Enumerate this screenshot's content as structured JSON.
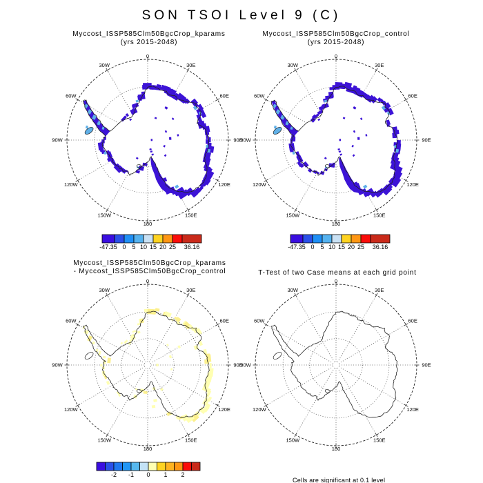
{
  "title": "SON TSOI Level 9 (C)",
  "map": {
    "lon_labels": [
      "0",
      "30E",
      "60E",
      "90E",
      "120E",
      "150E",
      "180",
      "150W",
      "120W",
      "90W",
      "60W",
      "30W"
    ]
  },
  "panels": [
    {
      "name": "kparams",
      "title_lines": [
        "Myccost_ISSP585Clm50BgcCrop_kparams",
        "(yrs 2015-2048)"
      ],
      "colorbar": {
        "labels": [
          "-47.35",
          "0",
          "5",
          "10",
          "15",
          "20",
          "25",
          "36.16"
        ],
        "colors": [
          "#3a0ee0",
          "#2a50e8",
          "#1f8ff5",
          "#55b2ef",
          "#c9e1f4",
          "#ffd321",
          "#ff9613",
          "#fb0d0a",
          "#ca2a1a"
        ]
      }
    },
    {
      "name": "control",
      "title_lines": [
        "Myccost_ISSP585Clm50BgcCrop_control",
        "(yrs 2015-2048)"
      ],
      "colorbar": {
        "labels": [
          "-47.35",
          "0",
          "5",
          "10",
          "15",
          "20",
          "25",
          "36.16"
        ],
        "colors": [
          "#3a0ee0",
          "#2a50e8",
          "#1f8ff5",
          "#55b2ef",
          "#c9e1f4",
          "#ffd321",
          "#ff9613",
          "#fb0d0a",
          "#ca2a1a"
        ]
      }
    },
    {
      "name": "difference",
      "title_lines": [
        "Myccost_ISSP585Clm50BgcCrop_kparams",
        "- Myccost_ISSP585Clm50BgcCrop_control"
      ],
      "colorbar": {
        "labels": [
          "-2",
          "-1",
          "0",
          "1",
          "2"
        ],
        "colors": [
          "#3a0ee0",
          "#2a50e8",
          "#1f78f0",
          "#2196f5",
          "#56b8ee",
          "#c3e2f5",
          "#ffffb2",
          "#ffd321",
          "#ffb321",
          "#ff9613",
          "#fb0d0a",
          "#ca2a1a"
        ]
      }
    },
    {
      "name": "ttest",
      "title_lines": [
        "T-Test of two Case means at each grid point"
      ],
      "footnote": "Cells are significant at 0.1 level"
    }
  ],
  "chart_data": [
    {
      "type": "heatmap",
      "projection": "south_polar_stereographic",
      "region": "Antarctica",
      "title": "Myccost_ISSP585Clm50BgcCrop_kparams (yrs 2015-2048)",
      "variable": "SON TSOI Level 9 (C)",
      "colorbar_labels": [
        "-47.35",
        "0",
        "5",
        "10",
        "15",
        "20",
        "25",
        "36.16"
      ],
      "min": -47.35,
      "max": 36.16
    },
    {
      "type": "heatmap",
      "projection": "south_polar_stereographic",
      "region": "Antarctica",
      "title": "Myccost_ISSP585Clm50BgcCrop_control (yrs 2015-2048)",
      "variable": "SON TSOI Level 9 (C)",
      "colorbar_labels": [
        "-47.35",
        "0",
        "5",
        "10",
        "15",
        "20",
        "25",
        "36.16"
      ],
      "min": -47.35,
      "max": 36.16
    },
    {
      "type": "heatmap",
      "projection": "south_polar_stereographic",
      "region": "Antarctica",
      "title": "Myccost_ISSP585Clm50BgcCrop_kparams - Myccost_ISSP585Clm50BgcCrop_control",
      "variable": "SON TSOI Level 9 (C) difference",
      "colorbar_labels": [
        "-2",
        "-1",
        "0",
        "1",
        "2"
      ]
    },
    {
      "type": "map",
      "projection": "south_polar_stereographic",
      "region": "Antarctica",
      "title": "T-Test of two Case means at each grid point",
      "note": "Cells are significant at 0.1 level"
    }
  ]
}
